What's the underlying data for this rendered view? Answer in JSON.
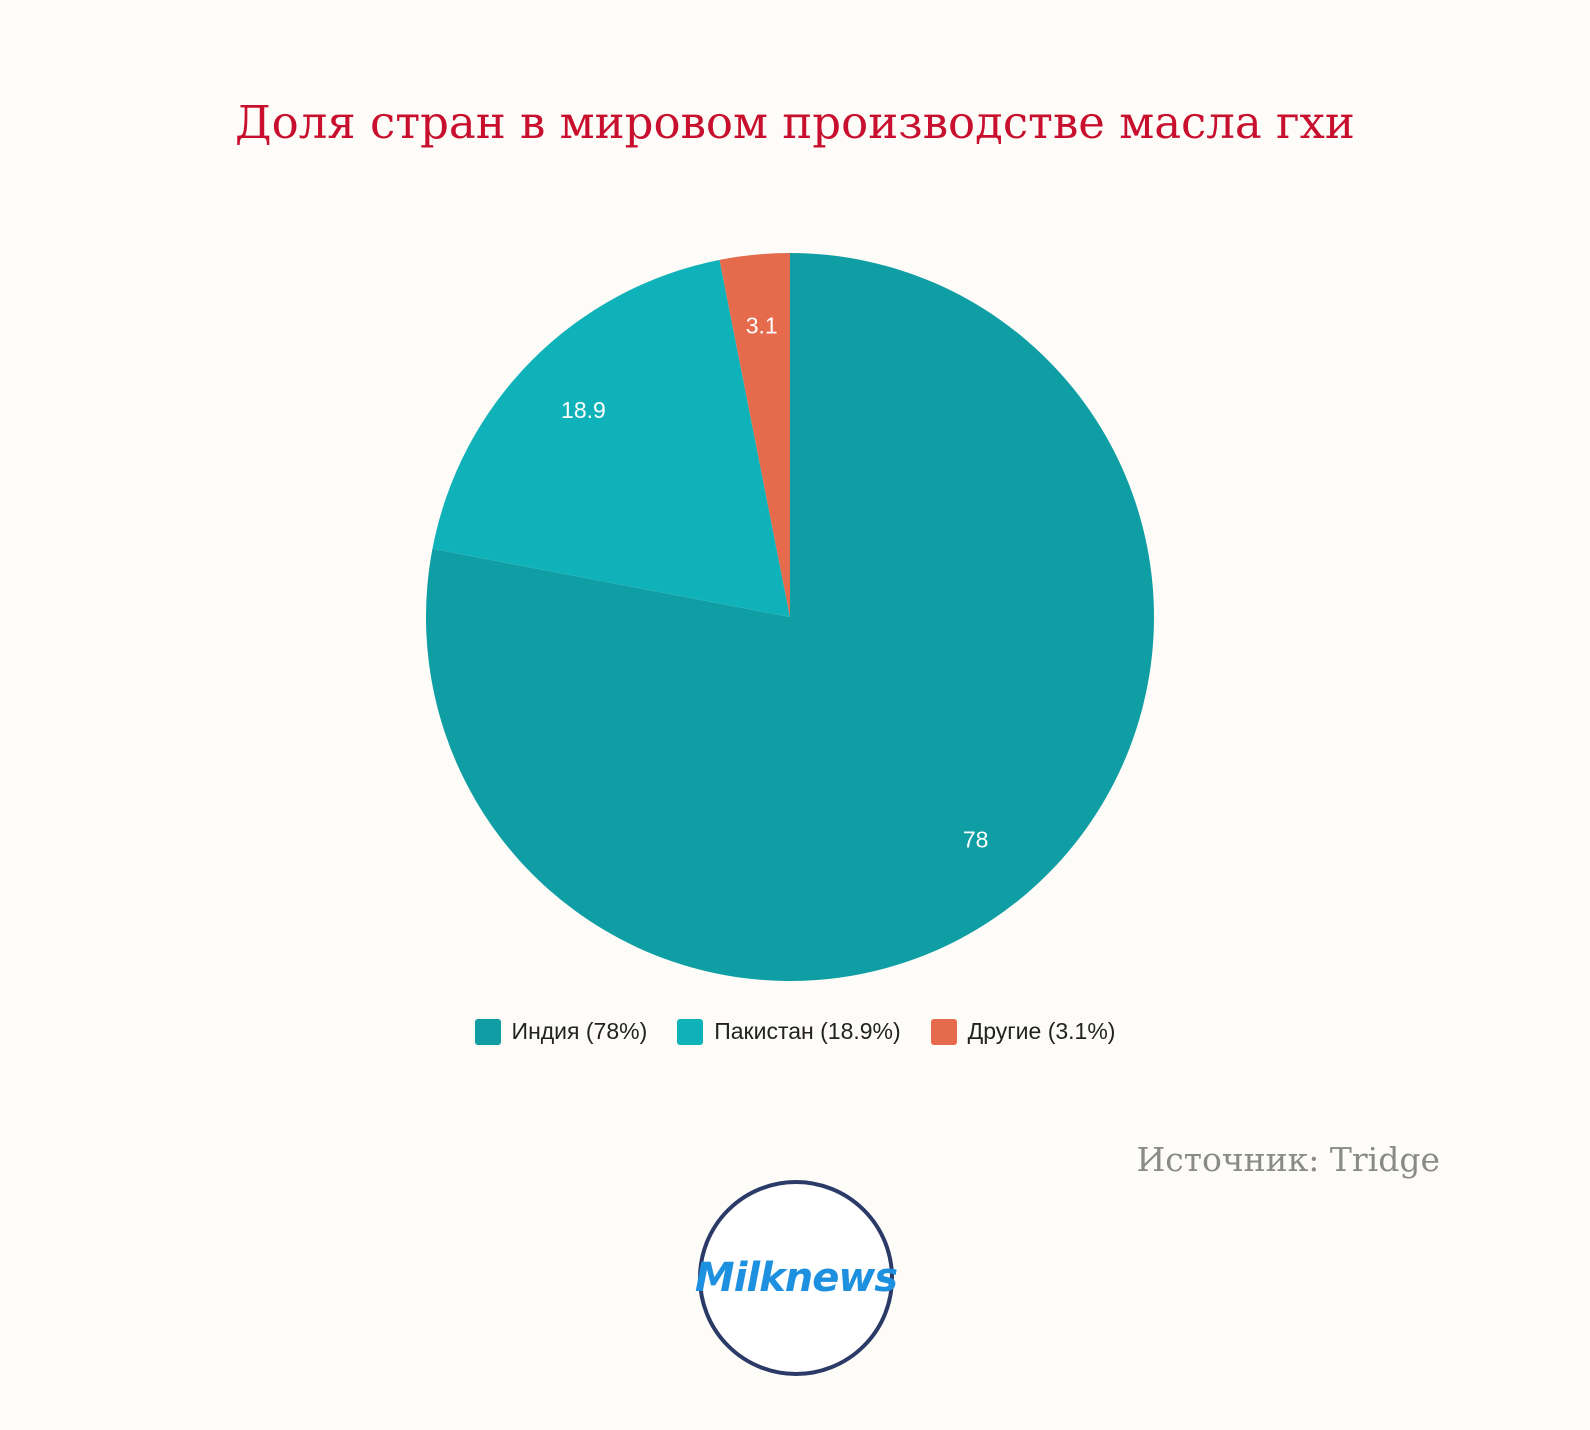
{
  "chart_data": {
    "type": "pie",
    "title": "Доля стран в мировом производстве масла гхи",
    "slices": [
      {
        "label": "Индия (78%)",
        "value": 78,
        "data_label": "78",
        "color": "#0f9ea3"
      },
      {
        "label": "Пакистан (18.9%)",
        "value": 18.9,
        "data_label": "18.9",
        "color": "#10b2ba"
      },
      {
        "label": "Другие (3.1%)",
        "value": 3.1,
        "data_label": "3.1",
        "color": "#e66a4c"
      }
    ],
    "legend_position": "bottom"
  },
  "source": "Источник: Tridge",
  "logo": {
    "text": "Milknews"
  }
}
